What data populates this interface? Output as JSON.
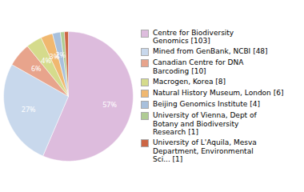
{
  "chart_data": {
    "type": "pie",
    "categories": [
      "Centre for Biodiversity\nGenomics [103]",
      "Mined from GenBank, NCBI [48]",
      "Canadian Centre for DNA\nBarcoding [10]",
      "Macrogen, Korea [8]",
      "Natural History Museum, London [6]",
      "Beijing Genomics Institute [4]",
      "University of Vienna, Dept of\nBotany and Biodiversity\nResearch [1]",
      "University of L'Aquila, Mesva\nDepartment, Environmental\nSci... [1]"
    ],
    "values": [
      57,
      27,
      6,
      4,
      3,
      2,
      1,
      1
    ],
    "value_labels": [
      "57%",
      "27%",
      "6%",
      "4%",
      "3%",
      "2%",
      null,
      null
    ],
    "colors": [
      "#ddbcdd",
      "#c8d8ec",
      "#e8a48c",
      "#d5db8c",
      "#f0b870",
      "#a8c0dc",
      "#b0cc94",
      "#cc6644"
    ],
    "data_labels": true,
    "legend": "right"
  }
}
